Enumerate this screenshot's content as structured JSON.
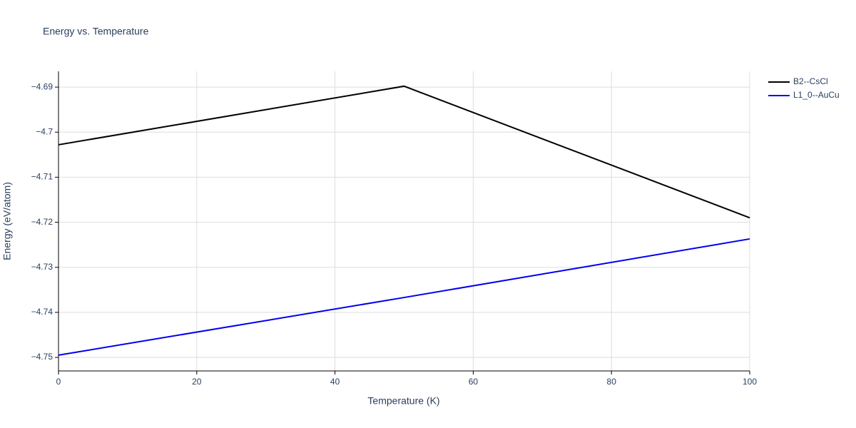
{
  "chart_data": {
    "type": "line",
    "title": "Energy vs. Temperature",
    "x_label": "Temperature (K)",
    "y_label": "Energy (eV/atom)",
    "x": [
      0,
      50,
      100
    ],
    "series": [
      {
        "name": "B2--CsCl",
        "color": "#000000",
        "values": [
          -4.7028,
          -4.6898,
          -4.719
        ]
      },
      {
        "name": "L1_0--AuCu",
        "color": "#0000ee",
        "values": [
          -4.7495,
          -4.7367,
          -4.7237
        ]
      }
    ],
    "xlim": [
      0,
      100
    ],
    "xticks": [
      0,
      20,
      40,
      60,
      80,
      100
    ],
    "ylim": [
      -4.753,
      -4.6865
    ],
    "yticks": [
      {
        "value": -4.69,
        "label": "−4.69"
      },
      {
        "value": -4.7,
        "label": "−4.7"
      },
      {
        "value": -4.71,
        "label": "−4.71"
      },
      {
        "value": -4.72,
        "label": "−4.72"
      },
      {
        "value": -4.73,
        "label": "−4.73"
      },
      {
        "value": -4.74,
        "label": "−4.74"
      },
      {
        "value": -4.75,
        "label": "−4.75"
      }
    ],
    "grid": true,
    "legend": "top-right"
  }
}
